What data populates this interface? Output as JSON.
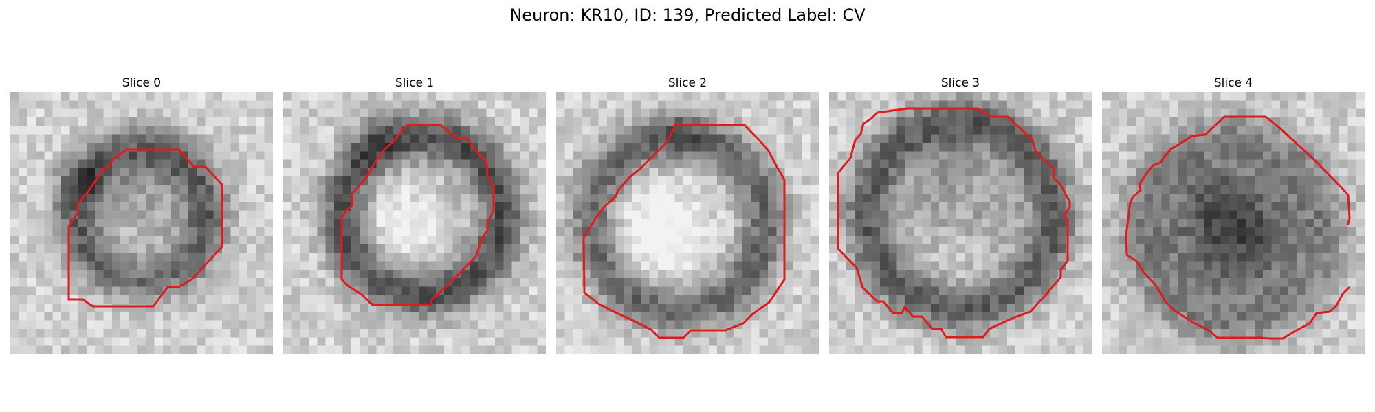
{
  "figure": {
    "title": "Neuron: KR10, ID: 139, Predicted Label: CV"
  },
  "panels": [
    {
      "title": "Slice 0"
    },
    {
      "title": "Slice 1"
    },
    {
      "title": "Slice 2"
    },
    {
      "title": "Slice 3"
    },
    {
      "title": "Slice 4"
    }
  ],
  "colors": {
    "contour": "#e31a1c",
    "cmap": "gray"
  }
}
